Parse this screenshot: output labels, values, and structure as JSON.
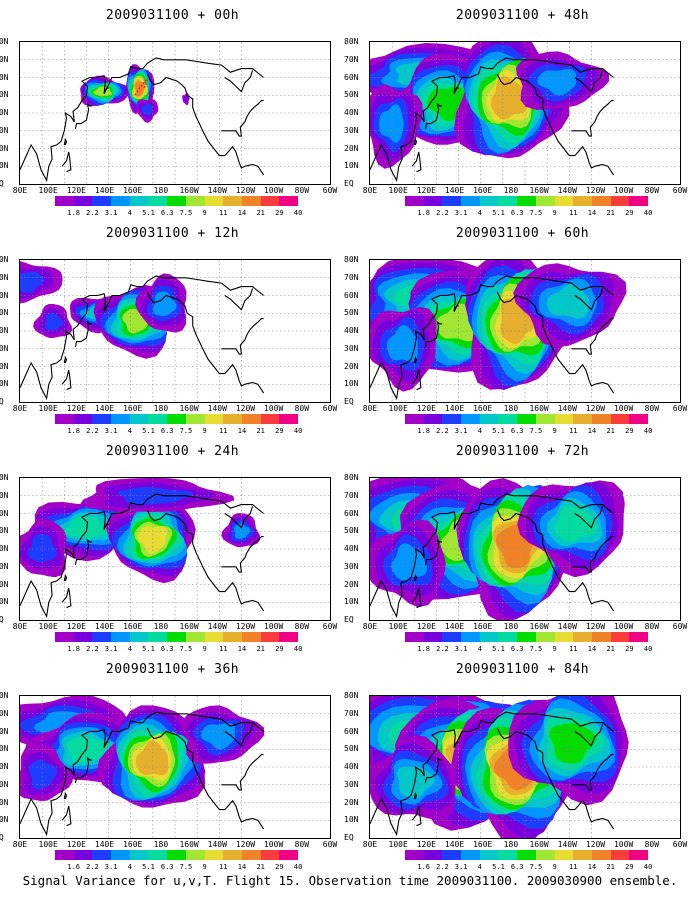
{
  "caption": "Signal Variance for u,v,T. Flight 15. Observation time 2009031100. 2009030900 ensemble.",
  "lat_labels": [
    "80N",
    "70N",
    "60N",
    "50N",
    "40N",
    "30N",
    "20N",
    "10N",
    "EQ"
  ],
  "lon_labels": [
    "80E",
    "100E",
    "120E",
    "140E",
    "160E",
    "180",
    "160W",
    "140W",
    "120W",
    "100W",
    "80W",
    "60W"
  ],
  "colorbar_labels": [
    "1.8",
    "2.2",
    "3.1",
    "4",
    "5.1",
    "6.3",
    "7.5",
    "9",
    "11",
    "14",
    "21",
    "29",
    "40"
  ],
  "colorbar_labels_alt": [
    "1.6",
    "2.2",
    "3.1",
    "4",
    "5.1",
    "6.3",
    "7.5",
    "9",
    "11",
    "14",
    "21",
    "29",
    "40"
  ],
  "colorbar_colors": [
    "#a000c8",
    "#7800dc",
    "#1e3cff",
    "#0096ff",
    "#00c8c8",
    "#00dca0",
    "#00dc00",
    "#a0e632",
    "#e6dc32",
    "#e6af2d",
    "#f08228",
    "#fa3c3c",
    "#f00082"
  ],
  "panels": [
    {
      "title": "2009031100 + 00h",
      "level": 1,
      "uses_alt_labels": false
    },
    {
      "title": "2009031100 + 48h",
      "level": 5,
      "uses_alt_labels": false
    },
    {
      "title": "2009031100 + 12h",
      "level": 2,
      "uses_alt_labels": false
    },
    {
      "title": "2009031100 + 60h",
      "level": 6,
      "uses_alt_labels": false
    },
    {
      "title": "2009031100 + 24h",
      "level": 3,
      "uses_alt_labels": false
    },
    {
      "title": "2009031100 + 72h",
      "level": 7,
      "uses_alt_labels": false
    },
    {
      "title": "2009031100 + 36h",
      "level": 4,
      "uses_alt_labels": true
    },
    {
      "title": "2009031100 + 84h",
      "level": 8,
      "uses_alt_labels": true
    }
  ]
}
